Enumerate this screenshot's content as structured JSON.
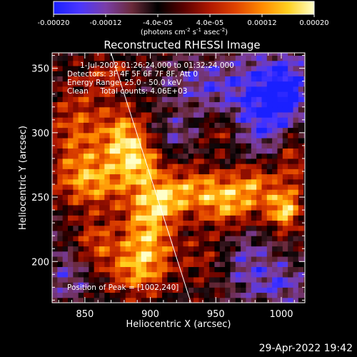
{
  "footer_timestamp": "29-Apr-2022 19:42",
  "colors": {
    "background": "#000000",
    "axis": "#ffffff",
    "limb": "#ffffff"
  },
  "colorbar": {
    "min": -0.0002,
    "max": 0.0002,
    "tick_labels": [
      "-0.00020",
      "-0.00012",
      "-4.0e-05",
      "4.0e-05",
      "0.00012",
      "0.00020"
    ],
    "unit_main": "(photons cm",
    "unit_sup1": "-2",
    "unit_mid": " s",
    "unit_sup2": "-1",
    "unit_tail": " asec",
    "unit_sup3": "-2",
    "unit_close": ")",
    "colormap": [
      "#1a20ff",
      "#4a36ff",
      "#7a3ea8",
      "#6a2a3a",
      "#000000",
      "#5a0000",
      "#b01800",
      "#e04400",
      "#ff8a00",
      "#ffd020",
      "#ffffc8"
    ]
  },
  "chart_data": {
    "type": "heatmap",
    "title": "Reconstructed RHESSI Image",
    "xlabel": "Heliocentric X (arcsec)",
    "ylabel": "Heliocentric Y (arcsec)",
    "xlim": [
      825,
      1018
    ],
    "ylim": [
      168,
      362
    ],
    "xticks": [
      850,
      900,
      950,
      1000
    ],
    "xtick_labels": [
      "850",
      "900",
      "950",
      "1000"
    ],
    "yticks": [
      200,
      250,
      300,
      350
    ],
    "ytick_labels": [
      "200",
      "250",
      "300",
      "350"
    ],
    "info_lines": [
      "1-Jul-2002 01:26:24.000 to 01:32:24.000",
      "Detectors: 3F 4F 5F 6F 7F 8F, Att 0",
      "Energy Range: 25.0 - 50.0 keV",
      "Clean     Total counts: 4.06E+03"
    ],
    "peak_label": "Position of Peak = [1002,240]",
    "limb_line": {
      "x": [
        870,
        931
      ],
      "y": [
        362,
        168
      ]
    },
    "grid_resolution_arcsec": 4,
    "blobs": [
      {
        "x": 845,
        "y": 300,
        "sx": 16,
        "sy": 28,
        "amp": 0.00012
      },
      {
        "x": 858,
        "y": 262,
        "sx": 20,
        "sy": 14,
        "amp": 0.00014
      },
      {
        "x": 880,
        "y": 296,
        "sx": 12,
        "sy": 16,
        "amp": 0.00018
      },
      {
        "x": 893,
        "y": 276,
        "sx": 11,
        "sy": 12,
        "amp": 0.00013
      },
      {
        "x": 898,
        "y": 225,
        "sx": 14,
        "sy": 24,
        "amp": 0.00018
      },
      {
        "x": 888,
        "y": 193,
        "sx": 16,
        "sy": 14,
        "amp": 0.00012
      },
      {
        "x": 912,
        "y": 247,
        "sx": 12,
        "sy": 10,
        "amp": 0.00011
      },
      {
        "x": 935,
        "y": 258,
        "sx": 20,
        "sy": 12,
        "amp": 0.00013
      },
      {
        "x": 960,
        "y": 244,
        "sx": 16,
        "sy": 13,
        "amp": 0.00015
      },
      {
        "x": 981,
        "y": 262,
        "sx": 12,
        "sy": 12,
        "amp": 0.00013
      },
      {
        "x": 1002,
        "y": 240,
        "sx": 9,
        "sy": 11,
        "amp": 0.0002
      },
      {
        "x": 1008,
        "y": 282,
        "sx": 8,
        "sy": 20,
        "amp": 0.00011
      },
      {
        "x": 945,
        "y": 202,
        "sx": 16,
        "sy": 16,
        "amp": 8e-05
      },
      {
        "x": 955,
        "y": 300,
        "sx": 10,
        "sy": 10,
        "amp": 8e-05
      },
      {
        "x": 858,
        "y": 215,
        "sx": 12,
        "sy": 14,
        "amp": 0.00011
      },
      {
        "x": 870,
        "y": 345,
        "sx": 12,
        "sy": 10,
        "amp": 8e-05
      },
      {
        "x": 985,
        "y": 322,
        "sx": 18,
        "sy": 28,
        "amp": -0.00014
      },
      {
        "x": 1005,
        "y": 332,
        "sx": 12,
        "sy": 20,
        "amp": -0.00012
      },
      {
        "x": 970,
        "y": 200,
        "sx": 16,
        "sy": 18,
        "amp": -0.0001
      },
      {
        "x": 940,
        "y": 338,
        "sx": 20,
        "sy": 14,
        "amp": -9e-05
      },
      {
        "x": 838,
        "y": 190,
        "sx": 12,
        "sy": 16,
        "amp": -8e-05
      },
      {
        "x": 920,
        "y": 300,
        "sx": 10,
        "sy": 10,
        "amp": -7e-05
      },
      {
        "x": 1000,
        "y": 182,
        "sx": 14,
        "sy": 12,
        "amp": -9e-05
      }
    ]
  }
}
